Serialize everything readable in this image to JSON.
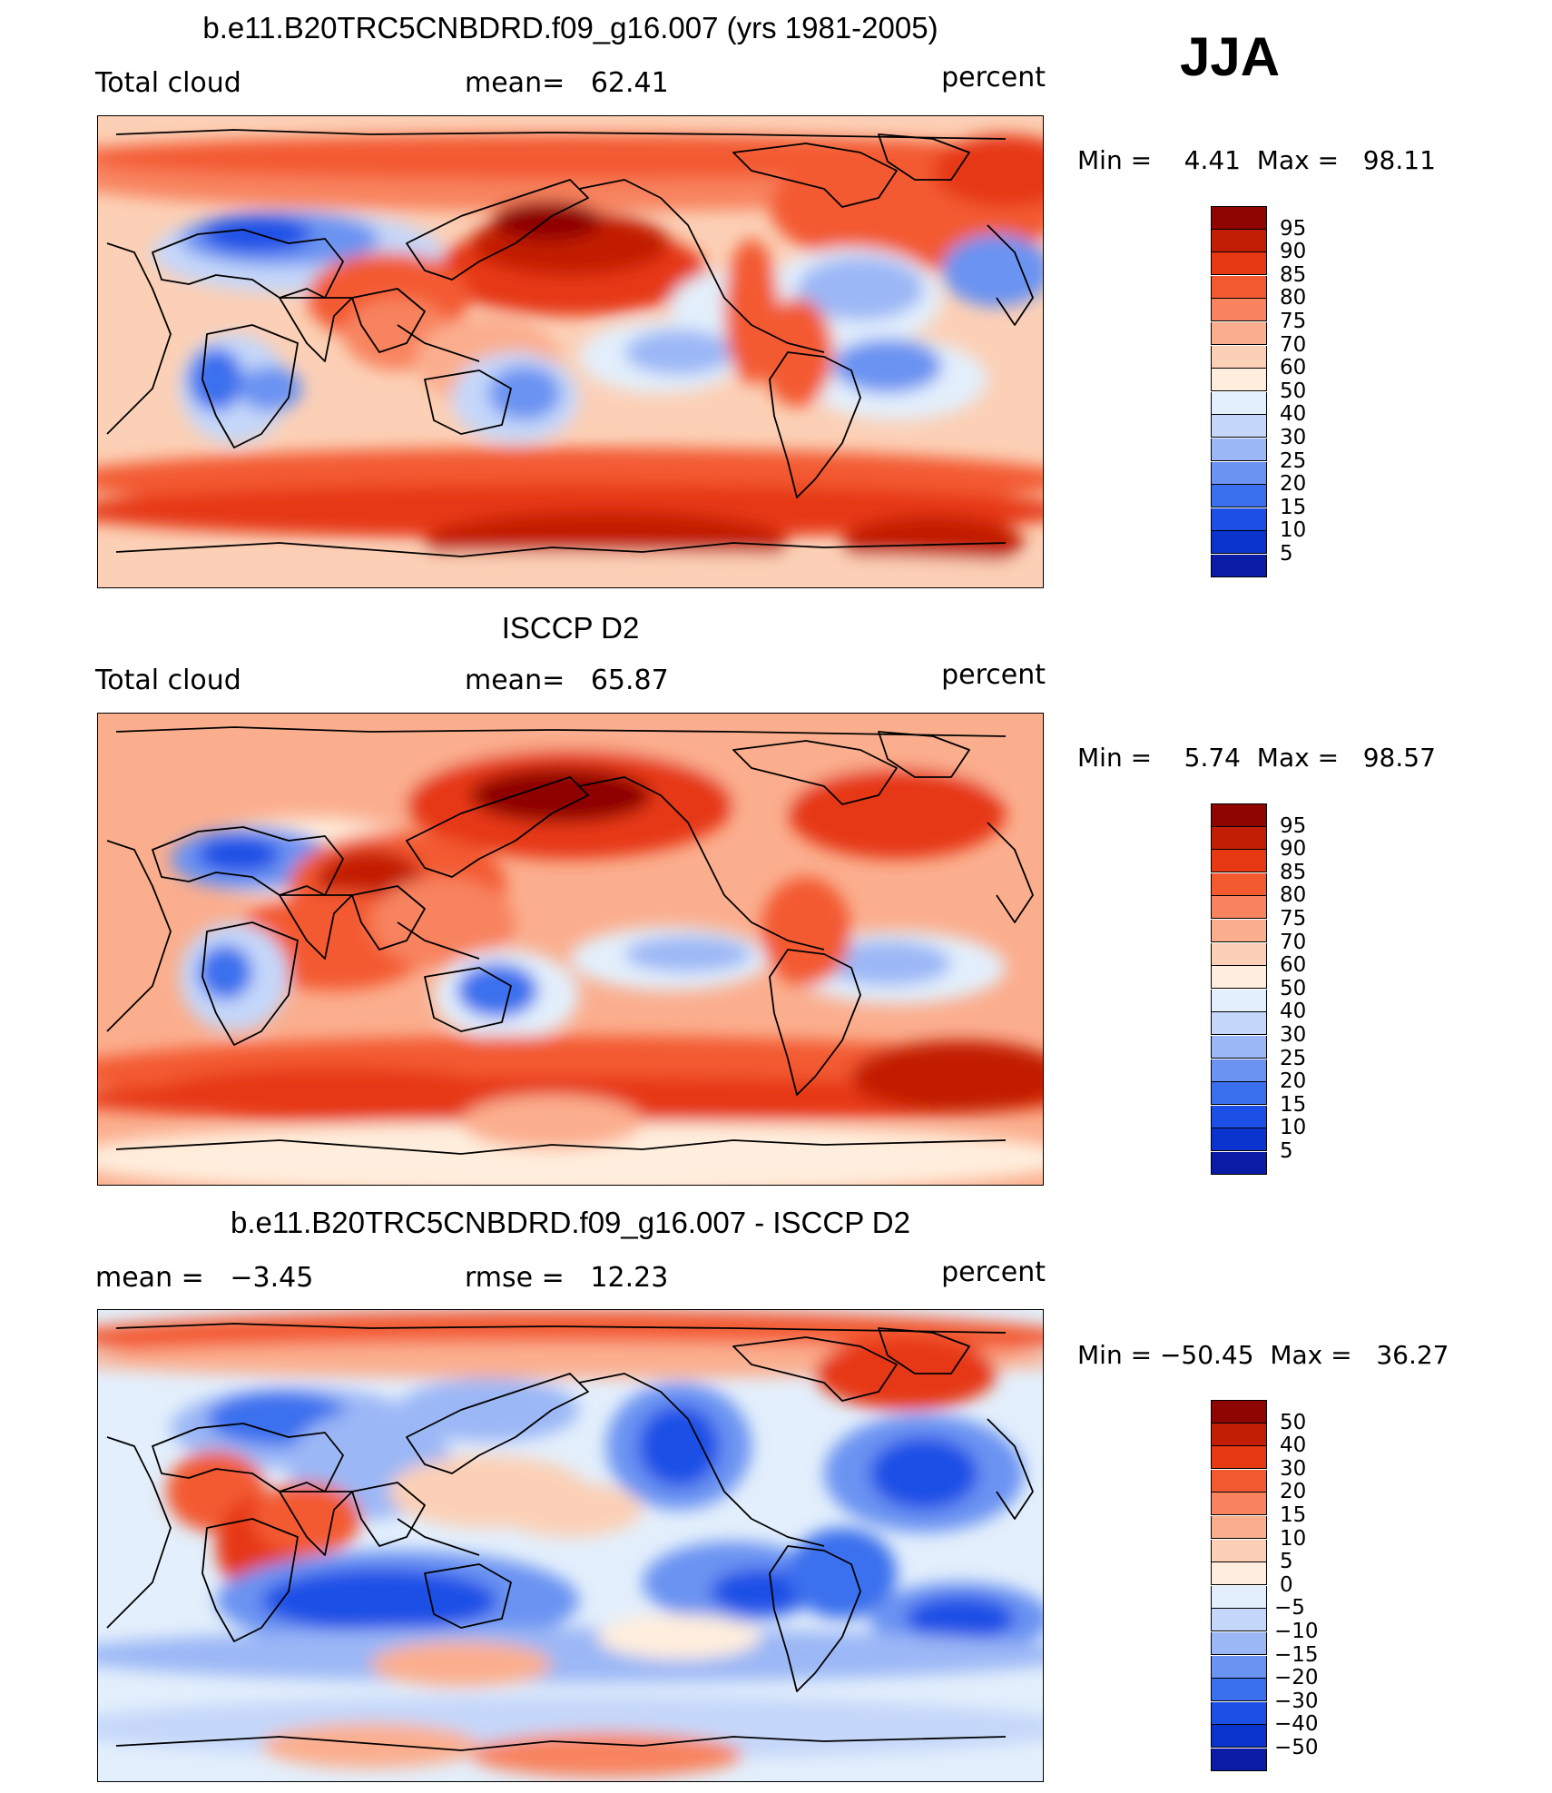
{
  "season_label": "JJA",
  "colors": {
    "levels_abs": [
      "#08007e",
      "#0a1ba5",
      "#0b34cf",
      "#1b4fe6",
      "#3a70ee",
      "#6b93f2",
      "#9bb7f6",
      "#c5d7fa",
      "#e3effc",
      "#ffeedd",
      "#fcd0b6",
      "#fbae8e",
      "#f8835e",
      "#f35a30",
      "#e63812",
      "#c21e06",
      "#8e0501"
    ],
    "levels_diff": [
      "#08007e",
      "#0a1ba5",
      "#0b34cf",
      "#1b4fe6",
      "#3a70ee",
      "#6b93f2",
      "#9bb7f6",
      "#c5d7fa",
      "#e3effc",
      "#ffeedd",
      "#fcd0b6",
      "#fbae8e",
      "#f8835e",
      "#f35a30",
      "#e63812",
      "#c21e06",
      "#8e0501"
    ],
    "coast": "#000000"
  },
  "panels": [
    {
      "title": "b.e11.B20TRC5CNBDRD.f09_g16.007 (yrs 1981-2005)",
      "left_label": "Total cloud",
      "mid_label": "mean=   62.41",
      "right_label": "percent",
      "minmax": "Min =    4.41  Max =   98.11",
      "colorbar_labels": [
        "95",
        "90",
        "85",
        "80",
        "75",
        "70",
        "60",
        "50",
        "40",
        "30",
        "25",
        "20",
        "15",
        "10",
        "5"
      ]
    },
    {
      "title": "ISCCP D2",
      "left_label": "Total cloud",
      "mid_label": "mean=   65.87",
      "right_label": "percent",
      "minmax": "Min =    5.74  Max =   98.57",
      "colorbar_labels": [
        "95",
        "90",
        "85",
        "80",
        "75",
        "70",
        "60",
        "50",
        "40",
        "30",
        "25",
        "20",
        "15",
        "10",
        "5"
      ]
    },
    {
      "title": "b.e11.B20TRC5CNBDRD.f09_g16.007 - ISCCP D2",
      "left_label": "mean =   −3.45",
      "mid_label": "rmse =   12.23",
      "right_label": "percent",
      "minmax": "Min = −50.45  Max =   36.27",
      "colorbar_labels": [
        "50",
        "40",
        "30",
        "20",
        "15",
        "10",
        "5",
        "0",
        "−5",
        "−10",
        "−15",
        "−20",
        "−30",
        "−40",
        "−50"
      ]
    }
  ]
}
